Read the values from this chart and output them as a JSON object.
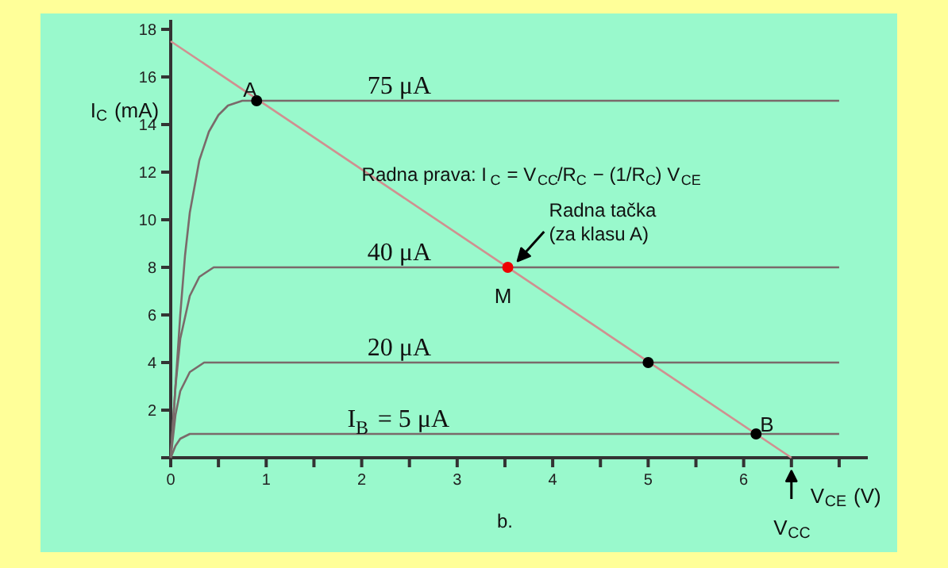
{
  "chart_data": {
    "type": "line",
    "xlabel": "V$_{CE}$ (V)",
    "ylabel": "I$_{C}$ (mA)",
    "xlim": [
      0,
      7.3
    ],
    "ylim": [
      0,
      18.4
    ],
    "xticks": [
      {
        "value": 0,
        "label": "0"
      },
      {
        "value": 0.5,
        "label": null
      },
      1,
      {
        "value": 1.5,
        "label": null
      },
      2,
      {
        "value": 2.5,
        "label": null
      },
      3,
      {
        "value": 3.5,
        "label": null
      },
      4,
      {
        "value": 4.5,
        "label": null
      },
      5,
      {
        "value": 5.5,
        "label": null
      },
      6,
      {
        "value": 6.5,
        "label": null
      },
      {
        "value": 7,
        "label": null
      }
    ],
    "yticks": [
      {
        "value": 0,
        "label": null
      },
      2,
      4,
      6,
      8,
      10,
      12,
      14,
      16,
      18
    ],
    "grid": false,
    "legend": false,
    "marker": "none",
    "line_style": "solid",
    "series": [
      {
        "name": "75 μA",
        "color": "#7a6a6a",
        "x": [
          0,
          0.05,
          0.1,
          0.15,
          0.2,
          0.3,
          0.4,
          0.5,
          0.6,
          0.75,
          0.9,
          7
        ],
        "values": [
          0,
          3,
          6,
          8.5,
          10.3,
          12.5,
          13.7,
          14.4,
          14.8,
          15,
          15,
          15
        ]
      },
      {
        "name": "40 μA",
        "color": "#7a6a6a",
        "x": [
          0,
          0.05,
          0.1,
          0.2,
          0.3,
          0.45,
          7
        ],
        "values": [
          0,
          3,
          5,
          6.8,
          7.6,
          8,
          8
        ]
      },
      {
        "name": "20 μA",
        "color": "#7a6a6a",
        "x": [
          0,
          0.05,
          0.1,
          0.2,
          0.35,
          7
        ],
        "values": [
          0,
          1.8,
          2.8,
          3.6,
          4,
          4
        ]
      },
      {
        "name": "I$_{B}$ = 5 μA",
        "color": "#7a6a6a",
        "x": [
          0,
          0.05,
          0.1,
          0.2,
          7
        ],
        "values": [
          0,
          0.5,
          0.8,
          1,
          1
        ]
      },
      {
        "type": "line",
        "color": "#d09090",
        "x": [
          0,
          6.5
        ],
        "values": [
          17.5,
          0
        ]
      },
      {
        "type": "scatter",
        "marker": "circle",
        "x": [
          0.9,
          3.53,
          5,
          6.13
        ],
        "values": [
          15,
          8,
          4,
          1
        ],
        "colors": [
          "#000000",
          "#ee0000",
          "#000000",
          "#000000"
        ]
      }
    ],
    "annotations": [
      {
        "text": "A",
        "x": 0.9,
        "y": 15
      },
      {
        "text": "M",
        "x": 3.53,
        "y": 8
      },
      {
        "text": "B",
        "x": 6.13,
        "y": 1
      },
      {
        "text": "Radna tačka\n(za klasu A)",
        "x": 3.53,
        "y": 8
      },
      {
        "text": "V$_{CC}$",
        "x": 6.5,
        "y": 0
      },
      "Radna prava: I$_{C}$ = V$_{CC}$/R$_{C}$ − (1/R$_{C}$) V$_{CE}$",
      "b."
    ]
  }
}
